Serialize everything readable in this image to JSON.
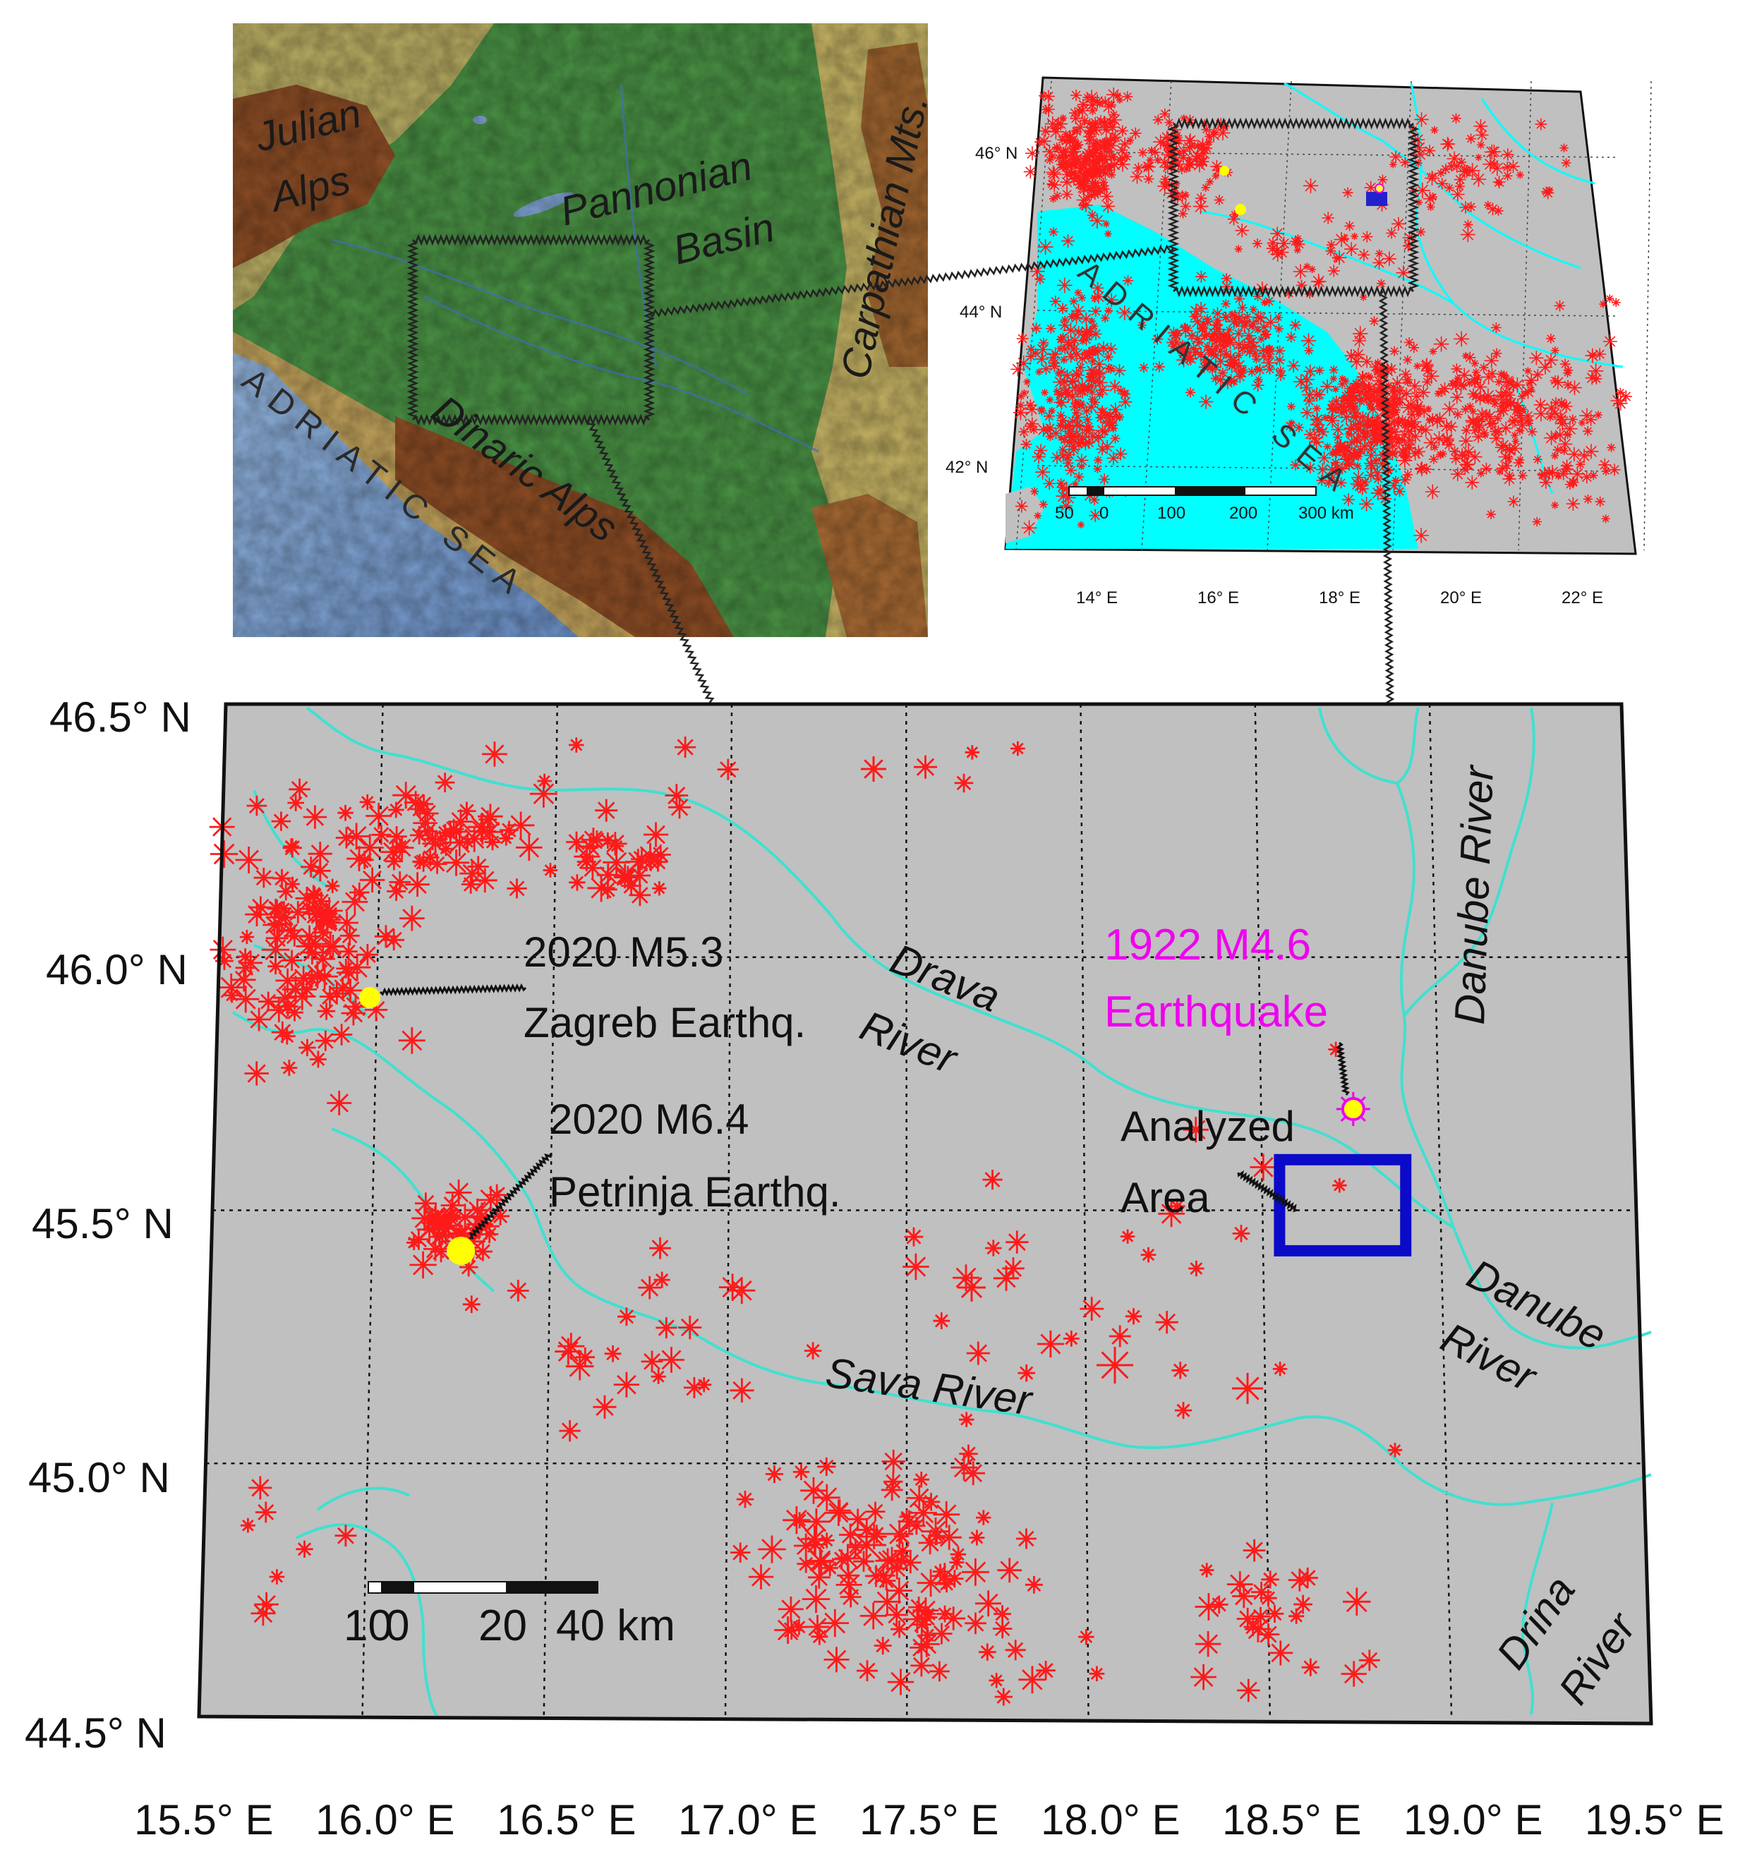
{
  "topo_map": {
    "labels": {
      "julian": [
        "Julian",
        "Alps"
      ],
      "pannonian": [
        "Pannonian",
        "Basin"
      ],
      "carpathian": "Carpathian Mts.",
      "dinaric": "Dinaric Alps",
      "adriatic": "ADRIATIC SEA"
    },
    "colors": {
      "lowland": "#3f8a3e",
      "upland": "#c9b160",
      "mountain": "#8b4a23",
      "sea": "#7da0cf"
    }
  },
  "regional_map": {
    "sea_label": "ADRIATIC SEA",
    "lat_labels": [
      {
        "text": "46° N",
        "lat": 46
      },
      {
        "text": "44° N",
        "lat": 44
      },
      {
        "text": "42° N",
        "lat": 42
      }
    ],
    "lon_labels": [
      {
        "text": "14° E",
        "lon": 14
      },
      {
        "text": "16° E",
        "lon": 16
      },
      {
        "text": "18° E",
        "lon": 18
      },
      {
        "text": "20° E",
        "lon": 20
      },
      {
        "text": "22° E",
        "lon": 22
      }
    ],
    "scale_labels": [
      "50",
      "0",
      "100",
      "200",
      "300 km"
    ],
    "colors": {
      "land": "#c0c0c0",
      "sea": "#00ffff",
      "events": "#ff0000"
    }
  },
  "main_map": {
    "lat_labels": [
      {
        "text": "46.5° N",
        "lat": 46.5
      },
      {
        "text": "46.0° N",
        "lat": 46.0
      },
      {
        "text": "45.5° N",
        "lat": 45.5
      },
      {
        "text": "45.0° N",
        "lat": 45.0
      },
      {
        "text": "44.5° N",
        "lat": 44.5
      }
    ],
    "lon_labels": [
      {
        "text": "15.5° E",
        "lon": 15.5
      },
      {
        "text": "16.0° E",
        "lon": 16.0
      },
      {
        "text": "16.5° E",
        "lon": 16.5
      },
      {
        "text": "17.0° E",
        "lon": 17.0
      },
      {
        "text": "17.5° E",
        "lon": 17.5
      },
      {
        "text": "18.0° E",
        "lon": 18.0
      },
      {
        "text": "18.5° E",
        "lon": 18.5
      },
      {
        "text": "19.0° E",
        "lon": 19.0
      },
      {
        "text": "19.5° E",
        "lon": 19.5
      }
    ],
    "rivers": {
      "drava": [
        "Drava",
        "River"
      ],
      "sava": "Sava River",
      "danube_north": "Danube River",
      "danube_south": [
        "Danube",
        "River"
      ],
      "drina": [
        "Drina",
        "River"
      ]
    },
    "earthquakes": {
      "zagreb": {
        "year_mag": "2020 M5.3",
        "name": "Zagreb Earthq.",
        "lon": 15.98,
        "lat": 45.92
      },
      "petrinja": {
        "year_mag": "2020 M6.4",
        "name": "Petrinja Earthq.",
        "lon": 16.25,
        "lat": 45.42
      },
      "historic": {
        "year_mag": "1922 M4.6",
        "name": "Earthquake",
        "lon": 18.76,
        "lat": 45.7
      }
    },
    "analyzed_area": {
      "label": [
        "Analyzed",
        "Area"
      ],
      "lon_min": 18.55,
      "lon_max": 18.9,
      "lat_min": 45.42,
      "lat_max": 45.6
    },
    "scale_bar": {
      "labels": [
        "10",
        "0",
        "20",
        "40 km"
      ]
    },
    "colors": {
      "land": "#c0c0c0",
      "river": "#40e0d0",
      "events": "#ff0000",
      "quake": "#ffff00",
      "historic_label": "#ee00ee",
      "area_box": "#0000cc"
    }
  }
}
